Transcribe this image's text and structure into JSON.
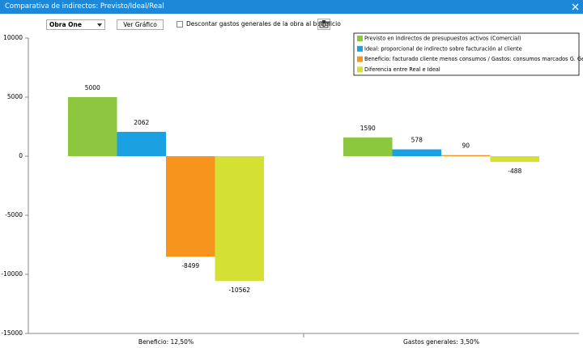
{
  "window": {
    "title": "Comparativa de indirectos: Previsto/Ideal/Real"
  },
  "toolbar": {
    "project": "Obra One",
    "button": "Ver Gráfico",
    "checkbox_label": "Descontar gastos generales de la obra al beneficio"
  },
  "chart_data": {
    "type": "bar",
    "categories": [
      "Beneficio: 12,50%",
      "Gastos generales: 3,50%"
    ],
    "series": [
      {
        "name": "Previsto en indirectos de presupuestos activos (Comercial)",
        "color": "#8dc63f",
        "values": [
          5000,
          1590
        ]
      },
      {
        "name": "Ideal: proporcional de indirecto sobre facturación al cliente",
        "color": "#1ba1e2",
        "values": [
          2062,
          578
        ]
      },
      {
        "name": "Beneficio: facturado cliente menos consumos / Gastos: consumos marcados G. General",
        "color": "#f7941d",
        "values": [
          -8499,
          90
        ]
      },
      {
        "name": "Diferencia entre Real e Ideal",
        "color": "#d4e034",
        "values": [
          -10562,
          -488
        ]
      }
    ],
    "ylim": [
      -15000,
      10000
    ],
    "yticks": [
      -15000,
      -10000,
      -5000,
      0,
      5000,
      10000
    ],
    "legend": "upper right",
    "grid": false
  }
}
